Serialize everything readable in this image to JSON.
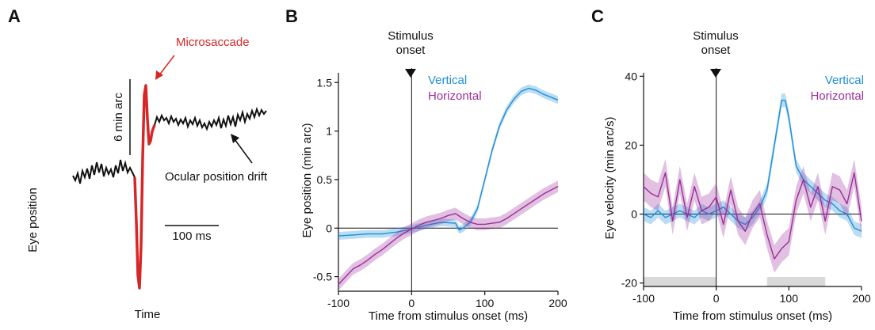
{
  "figure": {
    "panels": [
      "A",
      "B",
      "C"
    ],
    "colors": {
      "vertical": "#1f8fd6",
      "horizontal": "#9b2e9b",
      "microsaccade": "#d62728",
      "trace": "#111111",
      "bin": "#d9d9d9"
    }
  },
  "panel_a": {
    "ylabel": "Eye position",
    "xlabel": "Time",
    "microsaccade_label": "Microsaccade",
    "drift_label": "Ocular position drift",
    "scalebar_y_label": "6 min arc",
    "scalebar_x_label": "100 ms"
  },
  "onset_label_line1": "Stimulus",
  "onset_label_line2": "onset",
  "chart_data": [
    {
      "type": "line",
      "panel": "B",
      "xlabel": "Time from stimulus onset (ms)",
      "ylabel": "Eye position (min arc)",
      "xlim": [
        -100,
        200
      ],
      "ylim": [
        -0.65,
        1.6
      ],
      "xticks": [
        -100,
        0,
        100,
        200
      ],
      "yticks": [
        -0.5,
        0,
        0.5,
        1,
        1.5
      ],
      "ytick_labels": [
        "-0.5",
        "0",
        "0.5",
        "1",
        "1.5"
      ],
      "legend_position": "top-left",
      "series": [
        {
          "name": "Vertical",
          "color": "#1f8fd6",
          "x": [
            -100,
            -80,
            -60,
            -40,
            -20,
            0,
            20,
            40,
            60,
            65,
            70,
            80,
            90,
            100,
            110,
            120,
            130,
            140,
            150,
            160,
            170,
            180,
            190,
            200
          ],
          "y": [
            -0.08,
            -0.07,
            -0.06,
            -0.06,
            -0.04,
            -0.01,
            0.03,
            0.06,
            0.05,
            -0.02,
            0.0,
            0.06,
            0.2,
            0.5,
            0.8,
            1.05,
            1.22,
            1.33,
            1.41,
            1.44,
            1.42,
            1.38,
            1.35,
            1.32
          ],
          "band": 0.04
        },
        {
          "name": "Horizontal",
          "color": "#9b2e9b",
          "x": [
            -100,
            -90,
            -80,
            -70,
            -60,
            -50,
            -40,
            -30,
            -20,
            -10,
            0,
            10,
            20,
            30,
            40,
            50,
            60,
            70,
            80,
            90,
            100,
            110,
            120,
            130,
            140,
            150,
            160,
            170,
            180,
            190,
            200
          ],
          "y": [
            -0.58,
            -0.5,
            -0.42,
            -0.38,
            -0.33,
            -0.27,
            -0.22,
            -0.16,
            -0.1,
            -0.05,
            -0.01,
            0.03,
            0.06,
            0.08,
            0.1,
            0.13,
            0.15,
            0.1,
            0.06,
            0.04,
            0.04,
            0.05,
            0.06,
            0.1,
            0.15,
            0.2,
            0.25,
            0.3,
            0.35,
            0.39,
            0.43
          ],
          "band": 0.06
        }
      ]
    },
    {
      "type": "line",
      "panel": "C",
      "xlabel": "Time from stimulus onset (ms)",
      "ylabel": "Eye velocity (min arc/s)",
      "xlim": [
        -100,
        200
      ],
      "ylim": [
        -21,
        41
      ],
      "xticks": [
        -100,
        0,
        100,
        200
      ],
      "yticks": [
        -20,
        0,
        20,
        40
      ],
      "ytick_labels": [
        "-20",
        "0",
        "20",
        "40"
      ],
      "legend_position": "top-right",
      "time_bins": [
        [
          -100,
          0
        ],
        [
          70,
          150
        ]
      ],
      "series": [
        {
          "name": "Vertical",
          "color": "#1f8fd6",
          "x": [
            -100,
            -90,
            -80,
            -70,
            -60,
            -50,
            -40,
            -30,
            -20,
            -10,
            0,
            10,
            20,
            30,
            40,
            50,
            60,
            70,
            80,
            90,
            95,
            100,
            110,
            120,
            130,
            140,
            150,
            160,
            170,
            180,
            190,
            200
          ],
          "y": [
            0,
            -1,
            1,
            -1,
            0,
            1,
            0,
            -1,
            1,
            0,
            1,
            2,
            0,
            -2,
            -3,
            -1,
            2,
            7,
            20,
            33,
            33,
            28,
            14,
            10,
            8,
            6,
            4,
            3,
            1,
            0,
            -4,
            -5
          ],
          "band": 2
        },
        {
          "name": "Horizontal",
          "color": "#9b2e9b",
          "x": [
            -100,
            -90,
            -80,
            -70,
            -60,
            -50,
            -40,
            -30,
            -20,
            -10,
            0,
            10,
            20,
            30,
            40,
            50,
            60,
            70,
            80,
            90,
            100,
            110,
            120,
            130,
            140,
            150,
            160,
            170,
            180,
            190,
            200
          ],
          "y": [
            8,
            6,
            5,
            12,
            -2,
            10,
            -1,
            8,
            1,
            2,
            5,
            -3,
            7,
            -2,
            -5,
            0,
            3,
            -6,
            -13,
            -10,
            -8,
            4,
            10,
            2,
            8,
            -2,
            8,
            7,
            3,
            12,
            -2
          ],
          "band": 4
        }
      ]
    }
  ]
}
